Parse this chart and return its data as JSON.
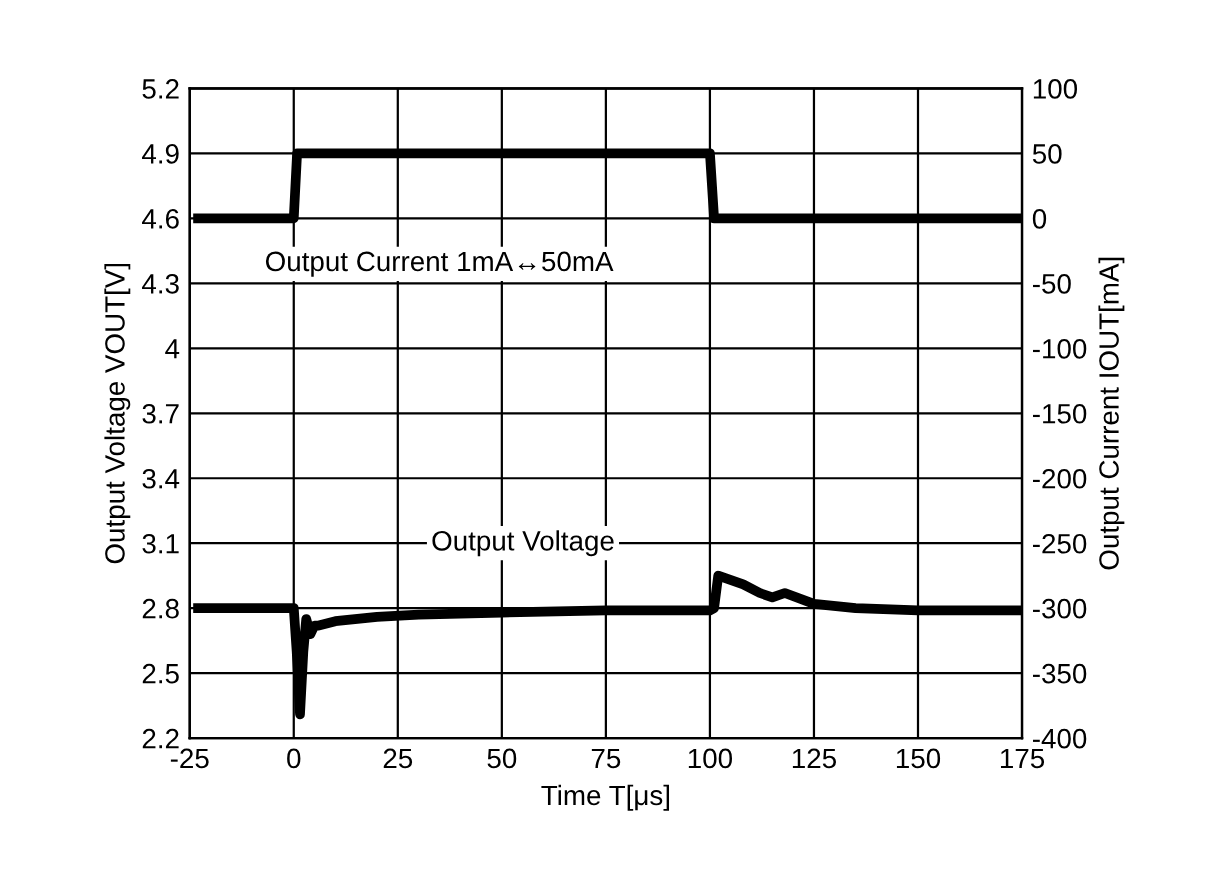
{
  "chart_data": {
    "type": "line",
    "xlabel": "Time T[μs]",
    "ylabel": "Output Voltage VOUT[V]",
    "y2label": "Output Current IOUT[mA]",
    "xlim": [
      -25,
      175
    ],
    "xticks": [
      -25,
      0,
      25,
      50,
      75,
      100,
      125,
      150,
      175
    ],
    "ylim": [
      2.2,
      5.2
    ],
    "yticks": [
      {
        "value": 2.2,
        "label": "2.2"
      },
      {
        "value": 2.5,
        "label": "2.5"
      },
      {
        "value": 2.8,
        "label": "2.8"
      },
      {
        "value": 3.1,
        "label": "3.1"
      },
      {
        "value": 3.4,
        "label": "3.4"
      },
      {
        "value": 3.7,
        "label": "3.7"
      },
      {
        "value": 4,
        "label": "4"
      },
      {
        "value": 4.3,
        "label": "4.3"
      },
      {
        "value": 4.6,
        "label": "4.6"
      },
      {
        "value": 4.9,
        "label": "4.9"
      },
      {
        "value": 5.2,
        "label": "5.2"
      }
    ],
    "y2lim": [
      -400,
      100
    ],
    "y2ticks": [
      -400,
      -350,
      -300,
      -250,
      -200,
      -150,
      -100,
      -50,
      0,
      50,
      100
    ],
    "grid": true,
    "legend": false,
    "series": [
      {
        "name": "Output Current 1mA↔50mA",
        "color": "#000000",
        "axis": "y2",
        "x": [
          -23,
          0,
          0.8,
          50,
          100,
          101,
          175
        ],
        "values": [
          0,
          0,
          50,
          50,
          50,
          0,
          0
        ]
      },
      {
        "name": "Output Voltage",
        "color": "#000000",
        "axis": "y",
        "x": [
          -23,
          0,
          0.7,
          1.5,
          2.3,
          3,
          4,
          5,
          6,
          10,
          20,
          30,
          50,
          75,
          100,
          101,
          102,
          108,
          112,
          115,
          118,
          125,
          135,
          150,
          175
        ],
        "values": [
          2.8,
          2.8,
          2.6,
          2.31,
          2.6,
          2.75,
          2.68,
          2.72,
          2.72,
          2.74,
          2.76,
          2.77,
          2.78,
          2.79,
          2.79,
          2.8,
          2.95,
          2.91,
          2.87,
          2.85,
          2.87,
          2.82,
          2.8,
          2.79,
          2.79
        ]
      }
    ]
  }
}
